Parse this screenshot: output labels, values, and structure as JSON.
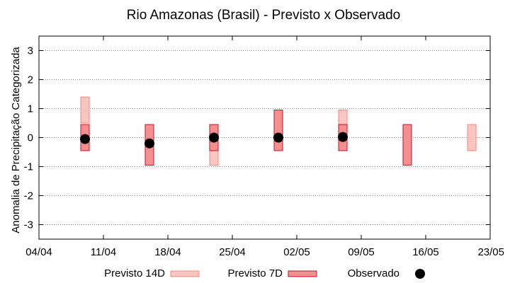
{
  "chart_data": {
    "type": "bar",
    "title": "Rio Amazonas (Brasil) - Previsto x Observado",
    "xlabel": "",
    "ylabel": "Anomalia de Precipitação Categorizada",
    "ylim": [
      -3.5,
      3.5
    ],
    "yticks": [
      -3,
      -2,
      -1,
      0,
      1,
      2,
      3
    ],
    "xlim": [
      "2020-04-04",
      "2020-05-23"
    ],
    "xticks": [
      {
        "date": "2020-04-04",
        "label": "04/04"
      },
      {
        "date": "2020-04-11",
        "label": "11/04"
      },
      {
        "date": "2020-04-18",
        "label": "18/04"
      },
      {
        "date": "2020-04-25",
        "label": "25/04"
      },
      {
        "date": "2020-05-02",
        "label": "02/05"
      },
      {
        "date": "2020-05-09",
        "label": "09/05"
      },
      {
        "date": "2020-05-16",
        "label": "16/05"
      },
      {
        "date": "2020-05-23",
        "label": "23/05"
      }
    ],
    "grid": true,
    "legend": "bottom",
    "series": [
      {
        "name": "Previsto 14D",
        "kind": "range",
        "color": "#f9c5c0",
        "stroke": "#f08a80",
        "points": [
          {
            "x": "2020-04-09",
            "low": 0.5,
            "high": 1.4
          },
          {
            "x": "2020-04-23",
            "low": -0.95,
            "high": 0.45
          },
          {
            "x": "2020-05-07",
            "low": 0.45,
            "high": 0.95
          },
          {
            "x": "2020-05-21",
            "low": -0.45,
            "high": 0.45
          }
        ]
      },
      {
        "name": "Previsto 7D",
        "kind": "range",
        "color": "#f58f8f",
        "stroke": "#c0142c",
        "points": [
          {
            "x": "2020-04-09",
            "low": -0.45,
            "high": 0.45
          },
          {
            "x": "2020-04-16",
            "low": -0.95,
            "high": 0.45
          },
          {
            "x": "2020-04-23",
            "low": -0.45,
            "high": 0.45
          },
          {
            "x": "2020-04-30",
            "low": -0.45,
            "high": 0.95
          },
          {
            "x": "2020-05-07",
            "low": -0.45,
            "high": 0.45
          },
          {
            "x": "2020-05-14",
            "low": -0.95,
            "high": 0.45
          }
        ]
      },
      {
        "name": "Observado",
        "kind": "point",
        "color": "#000000",
        "points": [
          {
            "x": "2020-04-09",
            "y": -0.05
          },
          {
            "x": "2020-04-16",
            "y": -0.2
          },
          {
            "x": "2020-04-23",
            "y": 0.0
          },
          {
            "x": "2020-04-30",
            "y": 0.0
          },
          {
            "x": "2020-05-07",
            "y": 0.02
          }
        ]
      }
    ]
  }
}
